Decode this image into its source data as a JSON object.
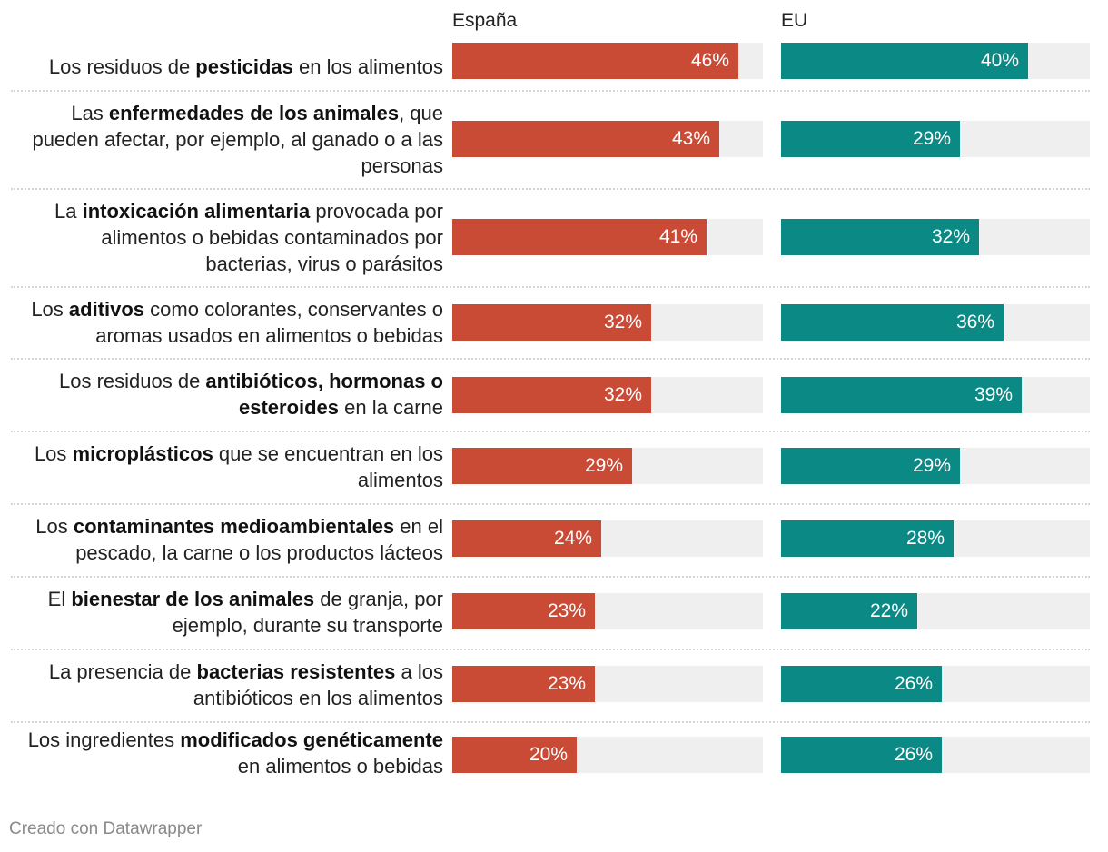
{
  "chart_data": {
    "type": "bar",
    "orientation": "horizontal",
    "xlim": [
      0,
      50
    ],
    "series": [
      {
        "name": "España",
        "color": "#c94b36",
        "values": [
          46,
          43,
          41,
          32,
          32,
          29,
          24,
          23,
          23,
          20
        ]
      },
      {
        "name": "EU",
        "color": "#0b8985",
        "values": [
          40,
          29,
          32,
          36,
          39,
          29,
          28,
          22,
          26,
          26
        ]
      }
    ],
    "categories": [
      "Los residuos de pesticidas en los alimentos",
      "Las enfermedades de los animales, que pueden afectar, por ejemplo, al ganado o a las personas",
      "La intoxicación alimentaria provocada por alimentos o bebidas contaminados por bacterias, virus o parásitos",
      "Los aditivos como colorantes, conservantes o aromas usados en alimentos o bebidas",
      "Los residuos de antibióticos, hormonas o esteroides en la carne",
      "Los microplásticos que se encuentran en los alimentos",
      "Los contaminantes medioambientales en el pescado, la carne o los productos lácteos",
      "El bienestar de los animales de granja, por ejemplo, durante su transporte",
      "La presencia de bacterias resistentes a los antibióticos en los alimentos",
      "Los ingredientes modificados genéticamente en alimentos o bebidas"
    ],
    "labels_rich": [
      [
        {
          "t": "Los residuos de "
        },
        {
          "t": "pesticidas",
          "b": true
        },
        {
          "t": " en los alimentos"
        }
      ],
      [
        {
          "t": "Las "
        },
        {
          "t": "enfermedades de los animales",
          "b": true
        },
        {
          "t": ", que pueden afectar, por ejemplo, al ganado o a las personas"
        }
      ],
      [
        {
          "t": "La "
        },
        {
          "t": "intoxicación alimentaria",
          "b": true
        },
        {
          "t": " provocada por alimentos o bebidas contaminados por bacterias, virus o parásitos"
        }
      ],
      [
        {
          "t": "Los "
        },
        {
          "t": "aditivos",
          "b": true
        },
        {
          "t": " como colorantes, conservantes o aromas usados en alimentos o bebidas"
        }
      ],
      [
        {
          "t": "Los residuos de "
        },
        {
          "t": "antibióticos, hormonas o esteroides",
          "b": true
        },
        {
          "t": " en la carne"
        }
      ],
      [
        {
          "t": "Los "
        },
        {
          "t": "microplásticos",
          "b": true
        },
        {
          "t": " que se encuentran en los alimentos"
        }
      ],
      [
        {
          "t": "Los "
        },
        {
          "t": "contaminantes medioambientales",
          "b": true
        },
        {
          "t": " en el pescado, la carne o los productos lácteos"
        }
      ],
      [
        {
          "t": "El "
        },
        {
          "t": "bienestar de los animales",
          "b": true
        },
        {
          "t": " de granja, por ejemplo, durante su transporte"
        }
      ],
      [
        {
          "t": "La presencia de "
        },
        {
          "t": "bacterias resistentes",
          "b": true
        },
        {
          "t": " a los antibióticos en los alimentos"
        }
      ],
      [
        {
          "t": "Los ingredientes "
        },
        {
          "t": "modificados genéticamente",
          "b": true
        },
        {
          "t": " en alimentos o bebidas"
        }
      ]
    ],
    "value_suffix": "%",
    "title": "",
    "xlabel": "",
    "ylabel": "",
    "grid": false
  },
  "footer": "Creado con Datawrapper"
}
